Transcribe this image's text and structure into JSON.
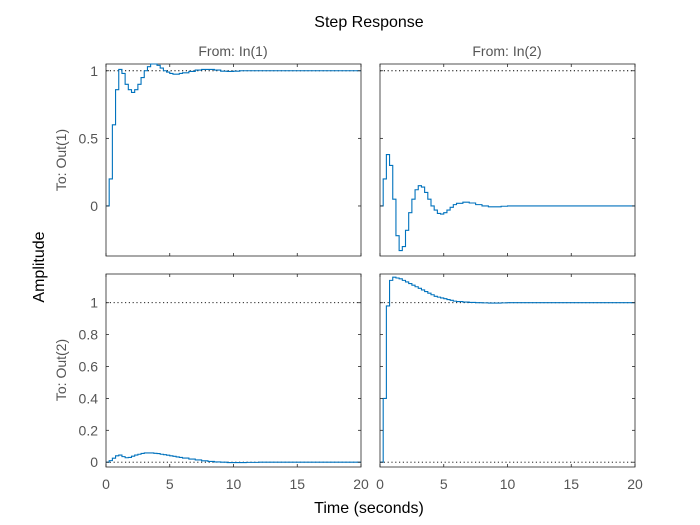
{
  "chart_data": {
    "type": "line",
    "title": "Step Response",
    "xlabel": "Time (seconds)",
    "ylabel": "Amplitude",
    "column_titles": [
      "From: In(1)",
      "From: In(2)"
    ],
    "row_titles": [
      "To: Out(1)",
      "To: Out(2)"
    ],
    "xlim": [
      0,
      20
    ],
    "xticks": [
      0,
      5,
      10,
      15,
      20
    ],
    "grid": false,
    "colors": {
      "response": "#0072BD",
      "reference": "#000000",
      "axes": "#262626",
      "tick_text": "#555555"
    },
    "rows": [
      {
        "ylim": [
          -0.37,
          1.05
        ],
        "yticks": [
          0,
          0.5,
          1
        ],
        "ytick_labels": [
          "0",
          "0.5",
          "1"
        ],
        "reference_level": 1,
        "panels": [
          {
            "series": [
              {
                "x": [
                  0,
                  0.25,
                  0.5,
                  0.75,
                  1,
                  1.25,
                  1.5,
                  1.75,
                  2,
                  2.25,
                  2.5,
                  2.75,
                  3,
                  3.25,
                  3.5,
                  3.75,
                  4,
                  4.25,
                  4.5,
                  4.75,
                  5,
                  5.25,
                  5.5,
                  5.75,
                  6,
                  6.5,
                  7,
                  7.5,
                  8,
                  8.5,
                  9,
                  9.5,
                  10,
                  10.5,
                  11,
                  12,
                  13,
                  14,
                  15,
                  16,
                  17,
                  18,
                  19,
                  20
                ],
                "y": [
                  0,
                  0.2,
                  0.6,
                  0.86,
                  1.01,
                  0.98,
                  0.9,
                  0.86,
                  0.84,
                  0.86,
                  0.9,
                  0.95,
                  1.0,
                  1.03,
                  1.05,
                  1.05,
                  1.04,
                  1.02,
                  1.0,
                  0.99,
                  0.98,
                  0.975,
                  0.975,
                  0.98,
                  0.985,
                  0.995,
                  1.005,
                  1.01,
                  1.01,
                  1.005,
                  0.997,
                  0.995,
                  0.997,
                  1.0,
                  1.0,
                  1.0,
                  1.0,
                  1.0,
                  1.0,
                  1.0,
                  1.0,
                  1.0,
                  1.0,
                  1.0
                ]
              }
            ]
          },
          {
            "series": [
              {
                "x": [
                  0,
                  0.25,
                  0.5,
                  0.75,
                  1,
                  1.25,
                  1.5,
                  1.75,
                  2,
                  2.25,
                  2.5,
                  2.75,
                  3,
                  3.25,
                  3.5,
                  3.75,
                  4,
                  4.25,
                  4.5,
                  4.75,
                  5,
                  5.25,
                  5.5,
                  5.75,
                  6,
                  6.5,
                  7,
                  7.5,
                  8,
                  8.5,
                  9,
                  9.5,
                  10,
                  10.5,
                  11,
                  12,
                  13,
                  14,
                  15,
                  16,
                  17,
                  18,
                  19,
                  20
                ],
                "y": [
                  0,
                  0.2,
                  0.38,
                  0.3,
                  0.05,
                  -0.22,
                  -0.33,
                  -0.3,
                  -0.18,
                  -0.05,
                  0.05,
                  0.12,
                  0.15,
                  0.14,
                  0.1,
                  0.05,
                  0.0,
                  -0.03,
                  -0.055,
                  -0.06,
                  -0.05,
                  -0.03,
                  -0.01,
                  0.01,
                  0.02,
                  0.028,
                  0.022,
                  0.01,
                  0.0,
                  -0.006,
                  -0.006,
                  -0.002,
                  0.0,
                  0.0,
                  0.0,
                  0.0,
                  0.0,
                  0.0,
                  0.0,
                  0.0,
                  0.0,
                  0.0,
                  0.0,
                  0.0
                ]
              }
            ]
          }
        ]
      },
      {
        "ylim": [
          -0.03,
          1.18
        ],
        "yticks": [
          0,
          0.2,
          0.4,
          0.6,
          0.8,
          1
        ],
        "ytick_labels": [
          "0",
          "0.2",
          "0.4",
          "0.6",
          "0.8",
          "1"
        ],
        "reference_level": [
          0,
          1
        ],
        "panels": [
          {
            "series": [
              {
                "x": [
                  0,
                  0.25,
                  0.5,
                  0.75,
                  1,
                  1.25,
                  1.5,
                  1.75,
                  2,
                  2.25,
                  2.5,
                  2.75,
                  3,
                  3.25,
                  3.5,
                  3.75,
                  4,
                  4.25,
                  4.5,
                  4.75,
                  5,
                  5.25,
                  5.5,
                  5.75,
                  6,
                  6.5,
                  7,
                  7.5,
                  8,
                  8.5,
                  9,
                  9.5,
                  10,
                  10.5,
                  11,
                  12,
                  13,
                  14,
                  15,
                  16,
                  17,
                  18,
                  19,
                  20
                ],
                "y": [
                  0,
                  0.01,
                  0.025,
                  0.04,
                  0.045,
                  0.035,
                  0.028,
                  0.03,
                  0.038,
                  0.045,
                  0.05,
                  0.055,
                  0.058,
                  0.058,
                  0.058,
                  0.056,
                  0.054,
                  0.05,
                  0.047,
                  0.044,
                  0.04,
                  0.037,
                  0.033,
                  0.03,
                  0.026,
                  0.02,
                  0.014,
                  0.009,
                  0.005,
                  0.002,
                  0.0,
                  -0.002,
                  -0.002,
                  -0.002,
                  -0.001,
                  0.0,
                  0.0,
                  0.0,
                  0.0,
                  0.0,
                  0.0,
                  0.0,
                  0.0,
                  0.0
                ]
              }
            ]
          },
          {
            "series": [
              {
                "x": [
                  0,
                  0.25,
                  0.5,
                  0.75,
                  1,
                  1.25,
                  1.5,
                  1.75,
                  2,
                  2.25,
                  2.5,
                  2.75,
                  3,
                  3.25,
                  3.5,
                  3.75,
                  4,
                  4.25,
                  4.5,
                  4.75,
                  5,
                  5.25,
                  5.5,
                  5.75,
                  6,
                  6.5,
                  7,
                  7.5,
                  8,
                  8.5,
                  9,
                  9.5,
                  10,
                  10.5,
                  11,
                  12,
                  13,
                  14,
                  15,
                  16,
                  17,
                  18,
                  19,
                  20
                ],
                "y": [
                  0,
                  0.4,
                  0.98,
                  1.14,
                  1.16,
                  1.155,
                  1.15,
                  1.14,
                  1.13,
                  1.12,
                  1.11,
                  1.1,
                  1.09,
                  1.08,
                  1.07,
                  1.06,
                  1.05,
                  1.04,
                  1.035,
                  1.03,
                  1.025,
                  1.02,
                  1.015,
                  1.01,
                  1.007,
                  1.004,
                  1.002,
                  1.0,
                  0.999,
                  0.998,
                  0.998,
                  0.999,
                  1.0,
                  1.0,
                  1.0,
                  1.0,
                  1.0,
                  1.0,
                  1.0,
                  1.0,
                  1.0,
                  1.0,
                  1.0,
                  1.0
                ]
              }
            ]
          }
        ]
      }
    ]
  }
}
